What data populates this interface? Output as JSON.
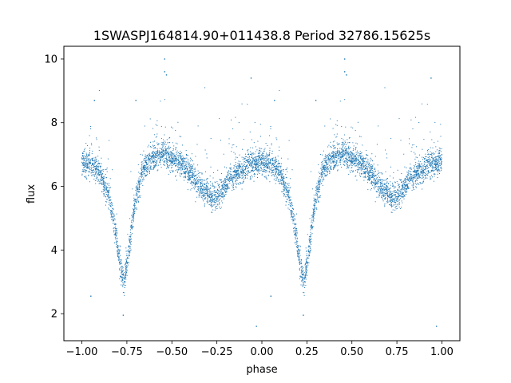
{
  "chart_data": {
    "type": "scatter",
    "title": "1SWASPJ164814.90+011438.8 Period 32786.15625s",
    "xlabel": "phase",
    "ylabel": "flux",
    "xlim": [
      -1.1,
      1.1
    ],
    "ylim": [
      1.15,
      10.4
    ],
    "xticks": [
      -1.0,
      -0.75,
      -0.5,
      -0.25,
      0.0,
      0.25,
      0.5,
      0.75,
      1.0
    ],
    "xtick_labels": [
      "−1.00",
      "−0.75",
      "−0.50",
      "−0.25",
      "0.00",
      "0.25",
      "0.50",
      "0.75",
      "1.00"
    ],
    "yticks": [
      2,
      4,
      6,
      8,
      10
    ],
    "ytick_labels": [
      "2",
      "4",
      "6",
      "8",
      "10"
    ],
    "grid": false,
    "marker_color": "#1f77b4",
    "phase_profile": {
      "phase": [
        0.0,
        0.05,
        0.1,
        0.15,
        0.18,
        0.2,
        0.22,
        0.23,
        0.24,
        0.26,
        0.28,
        0.3,
        0.33,
        0.36,
        0.4,
        0.45,
        0.5,
        0.55,
        0.6,
        0.65,
        0.7,
        0.72,
        0.75,
        0.78,
        0.82,
        0.88,
        0.94,
        1.0
      ],
      "flux": [
        6.75,
        6.65,
        6.4,
        5.7,
        4.8,
        4.0,
        3.3,
        3.05,
        3.2,
        3.9,
        4.8,
        5.6,
        6.3,
        6.7,
        6.95,
        7.0,
        6.9,
        6.7,
        6.4,
        6.05,
        5.75,
        5.65,
        5.7,
        5.9,
        6.2,
        6.5,
        6.7,
        6.75
      ],
      "scatter": 0.2
    },
    "outliers": [
      {
        "x": -0.54,
        "y": 9.6
      },
      {
        "x": -0.53,
        "y": 9.5
      },
      {
        "x": -0.54,
        "y": 10.0
      },
      {
        "x": 0.46,
        "y": 9.6
      },
      {
        "x": 0.47,
        "y": 9.5
      },
      {
        "x": 0.46,
        "y": 10.0
      },
      {
        "x": -0.93,
        "y": 8.7
      },
      {
        "x": 0.07,
        "y": 8.7
      },
      {
        "x": -0.7,
        "y": 8.7
      },
      {
        "x": 0.3,
        "y": 8.7
      },
      {
        "x": -0.95,
        "y": 2.55
      },
      {
        "x": 0.05,
        "y": 2.55
      },
      {
        "x": -0.03,
        "y": 1.6
      },
      {
        "x": 0.97,
        "y": 1.6
      },
      {
        "x": -0.77,
        "y": 1.95
      },
      {
        "x": 0.23,
        "y": 1.95
      },
      {
        "x": -0.06,
        "y": 9.4
      },
      {
        "x": 0.94,
        "y": 9.4
      }
    ],
    "points_per_cycle": 3000
  }
}
